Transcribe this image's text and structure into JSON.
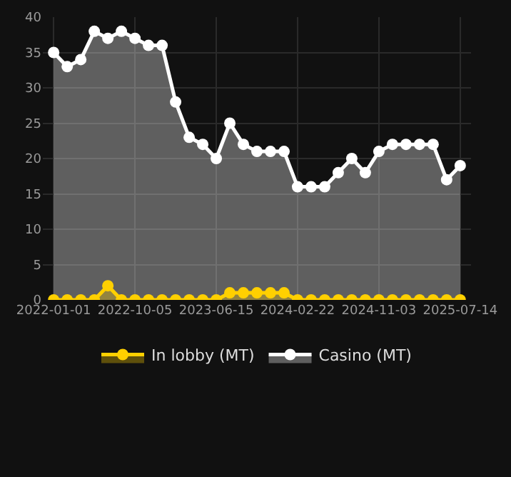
{
  "chart_data": {
    "type": "area",
    "categories": [
      "2022-01-01",
      null,
      null,
      null,
      null,
      null,
      "2022-10-05",
      null,
      null,
      null,
      null,
      null,
      "2023-06-15",
      null,
      null,
      null,
      null,
      null,
      "2024-02-22",
      null,
      null,
      null,
      null,
      null,
      "2024-11-03",
      null,
      null,
      null,
      null,
      null,
      "2025-07-14"
    ],
    "series": [
      {
        "name": "In lobby (MT)",
        "color": "#ffd000",
        "values": [
          0,
          0,
          0,
          0,
          2,
          0,
          0,
          0,
          0,
          0,
          0,
          0,
          0,
          1,
          1,
          1,
          1,
          1,
          0,
          0,
          0,
          0,
          0,
          0,
          0,
          0,
          0,
          0,
          0,
          0,
          0
        ]
      },
      {
        "name": "Casino (MT)",
        "color": "#ffffff",
        "values": [
          35,
          33,
          34,
          38,
          37,
          38,
          37,
          36,
          36,
          28,
          23,
          22,
          20,
          25,
          22,
          21,
          21,
          21,
          16,
          16,
          16,
          18,
          20,
          18,
          21,
          22,
          22,
          22,
          22,
          17,
          19
        ]
      }
    ],
    "ylim": [
      0,
      40
    ],
    "yticks": [
      0,
      5,
      10,
      15,
      20,
      25,
      30,
      35,
      40
    ],
    "grid": true,
    "legend": "bottom",
    "marker": "circle",
    "line_style": "solid"
  }
}
